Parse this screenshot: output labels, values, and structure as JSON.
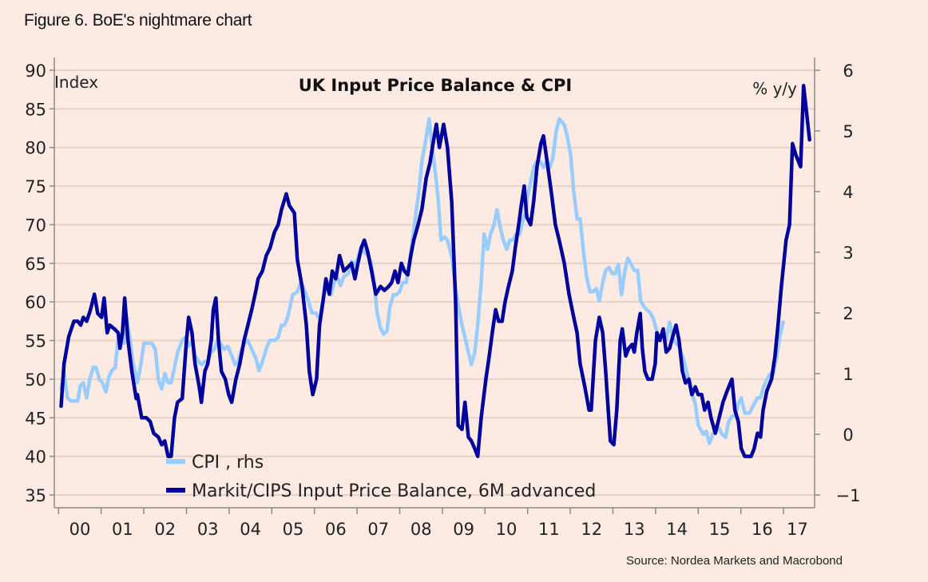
{
  "figure_title": "Figure 6. BoE's nightmare chart",
  "source": "Source: Nordea Markets and Macrobond",
  "colors": {
    "background": "#fdebe3",
    "grid": "#e6d3c8",
    "axis": "#8a8a8a",
    "markit": "#00009c",
    "cpi": "#99ccff"
  },
  "chart_data": {
    "type": "line",
    "title": "UK Input Price Balance & CPI",
    "ylabel": "Index",
    "y2label": "% y/y",
    "ylim": [
      35,
      90
    ],
    "y2lim": [
      -1,
      6
    ],
    "xlim": [
      2000,
      2017.65
    ],
    "yticks": [
      "35",
      "40",
      "45",
      "50",
      "55",
      "60",
      "65",
      "70",
      "75",
      "80",
      "85",
      "90"
    ],
    "y2ticks": [
      "−1",
      "0",
      "1",
      "2",
      "3",
      "4",
      "5",
      "6"
    ],
    "xtick_labels": [
      "00",
      "01",
      "02",
      "03",
      "04",
      "05",
      "06",
      "07",
      "08",
      "09",
      "10",
      "11",
      "12",
      "13",
      "14",
      "15",
      "16",
      "17"
    ],
    "grid": true,
    "legend_placement": "bottom-left",
    "series": [
      {
        "name": "CPI , rhs",
        "axis": "right",
        "x": [
          2000.06,
          2000.13,
          2000.21,
          2000.28,
          2000.37,
          2000.45,
          2000.51,
          2000.58,
          2000.66,
          2000.73,
          2000.81,
          2000.88,
          2000.96,
          2001.03,
          2001.11,
          2001.18,
          2001.25,
          2001.33,
          2001.4,
          2001.48,
          2001.54,
          2001.59,
          2001.67,
          2001.74,
          2001.85,
          2001.93,
          2002.0,
          2002.1,
          2002.19,
          2002.27,
          2002.34,
          2002.42,
          2002.49,
          2002.57,
          2002.64,
          2002.72,
          2002.79,
          2002.9,
          2002.98,
          2003.05,
          2003.13,
          2003.2,
          2003.28,
          2003.35,
          2003.43,
          2003.5,
          2003.58,
          2003.65,
          2003.73,
          2003.8,
          2003.88,
          2003.97,
          2004.06,
          2004.14,
          2004.21,
          2004.29,
          2004.36,
          2004.44,
          2004.53,
          2004.63,
          2004.7,
          2004.78,
          2004.89,
          2004.96,
          2005.08,
          2005.15,
          2005.23,
          2005.3,
          2005.38,
          2005.49,
          2005.6,
          2005.68,
          2005.75,
          2005.86,
          2005.94,
          2006.03,
          2006.12,
          2006.22,
          2006.31,
          2006.39,
          2006.46,
          2006.54,
          2006.61,
          2006.69,
          2006.8,
          2006.87,
          2006.95,
          2007.02,
          2007.1,
          2007.17,
          2007.25,
          2007.32,
          2007.4,
          2007.47,
          2007.55,
          2007.62,
          2007.7,
          2007.77,
          2007.85,
          2007.92,
          2008.0,
          2008.07,
          2008.15,
          2008.22,
          2008.3,
          2008.37,
          2008.45,
          2008.52,
          2008.6,
          2008.69,
          2008.75,
          2008.82,
          2008.9,
          2008.97,
          2009.05,
          2009.12,
          2009.23,
          2009.31,
          2009.38,
          2009.46,
          2009.53,
          2009.61,
          2009.68,
          2009.76,
          2009.83,
          2009.91,
          2009.98,
          2010.06,
          2010.13,
          2010.21,
          2010.28,
          2010.36,
          2010.43,
          2010.51,
          2010.58,
          2010.66,
          2010.73,
          2010.81,
          2010.88,
          2010.96,
          2010.99,
          2011.07,
          2011.14,
          2011.22,
          2011.29,
          2011.37,
          2011.44,
          2011.52,
          2011.59,
          2011.67,
          2011.74,
          2011.86,
          2011.93,
          2012.01,
          2012.08,
          2012.16,
          2012.23,
          2012.31,
          2012.38,
          2012.46,
          2012.53,
          2012.61,
          2012.68,
          2012.76,
          2012.83,
          2012.91,
          2012.98,
          2013.05,
          2013.13,
          2013.2,
          2013.28,
          2013.35,
          2013.43,
          2013.5,
          2013.58,
          2013.65,
          2013.73,
          2013.8,
          2013.88,
          2013.95,
          2014.03,
          2014.1,
          2014.18,
          2014.25,
          2014.33,
          2014.4,
          2014.48,
          2014.55,
          2014.67,
          2014.74,
          2014.82,
          2014.93,
          2015.0,
          2015.12,
          2015.19,
          2015.26,
          2015.34,
          2015.41,
          2015.49,
          2015.56,
          2015.64,
          2015.71,
          2015.79,
          2015.86,
          2015.94,
          2016.01,
          2016.09,
          2016.2,
          2016.31,
          2016.39,
          2016.46,
          2016.54,
          2016.61,
          2016.69,
          2016.76,
          2016.84,
          2016.91,
          2016.99
        ],
        "values": [
          0.75,
          1.0,
          0.6,
          0.55,
          0.55,
          0.55,
          0.8,
          0.85,
          0.6,
          0.9,
          1.1,
          1.1,
          0.9,
          0.85,
          0.7,
          0.95,
          1.05,
          1.1,
          1.6,
          1.6,
          1.5,
          1.95,
          1.6,
          1.2,
          0.85,
          1.15,
          1.5,
          1.5,
          1.5,
          1.4,
          0.9,
          0.75,
          1.0,
          0.85,
          0.85,
          1.1,
          1.35,
          1.55,
          1.6,
          1.45,
          1.55,
          1.3,
          1.2,
          1.15,
          1.2,
          1.2,
          1.35,
          1.4,
          1.55,
          1.5,
          1.4,
          1.45,
          1.3,
          1.15,
          1.2,
          1.4,
          1.5,
          1.55,
          1.4,
          1.25,
          1.05,
          1.2,
          1.45,
          1.55,
          1.55,
          1.6,
          1.8,
          1.8,
          1.95,
          2.3,
          2.35,
          2.5,
          2.4,
          2.2,
          2.0,
          2.0,
          1.9,
          2.3,
          2.5,
          2.3,
          2.5,
          2.6,
          2.45,
          2.6,
          2.65,
          2.85,
          2.8,
          2.9,
          3.1,
          3.0,
          2.95,
          2.85,
          2.5,
          2.0,
          1.75,
          1.65,
          1.7,
          2.1,
          2.3,
          2.3,
          2.35,
          2.5,
          2.5,
          2.8,
          3.2,
          3.6,
          4.0,
          4.5,
          4.8,
          5.2,
          4.8,
          4.4,
          3.9,
          3.2,
          3.25,
          3.2,
          2.9,
          2.4,
          2.1,
          1.8,
          1.6,
          1.35,
          1.15,
          1.35,
          1.8,
          2.5,
          3.3,
          3.05,
          3.3,
          3.45,
          3.7,
          3.4,
          3.2,
          3.05,
          3.2,
          3.2,
          3.3,
          3.3,
          3.5,
          3.7,
          3.9,
          4.15,
          4.4,
          4.5,
          4.5,
          4.4,
          4.5,
          4.4,
          4.55,
          5.0,
          5.2,
          5.1,
          4.9,
          4.6,
          4.0,
          3.55,
          3.55,
          3.0,
          2.6,
          2.35,
          2.35,
          2.4,
          2.2,
          2.5,
          2.7,
          2.75,
          2.65,
          2.65,
          2.8,
          2.3,
          2.7,
          2.9,
          2.8,
          2.7,
          2.7,
          2.2,
          2.1,
          2.05,
          2.0,
          1.9,
          1.7,
          1.55,
          1.7,
          1.55,
          1.85,
          1.6,
          1.5,
          1.45,
          1.2,
          1.0,
          0.75,
          0.5,
          0.15,
          0.0,
          0.05,
          -0.15,
          0.0,
          0.05,
          0.1,
          0.0,
          -0.05,
          0.2,
          0.3,
          0.3,
          0.5,
          0.6,
          0.35,
          0.35,
          0.5,
          0.6,
          0.6,
          0.8,
          0.9,
          1.0,
          1.0,
          1.3,
          1.6,
          1.85
        ]
      },
      {
        "name": "Markit/CIPS Input Price Balance, 6M advanced",
        "axis": "left",
        "x": [
          2000.06,
          2000.13,
          2000.24,
          2000.36,
          2000.45,
          2000.52,
          2000.58,
          2000.66,
          2000.75,
          2000.84,
          2000.92,
          2001.01,
          2001.07,
          2001.14,
          2001.2,
          2001.31,
          2001.4,
          2001.44,
          2001.5,
          2001.55,
          2001.63,
          2001.72,
          2001.82,
          2001.85,
          2001.95,
          2002.06,
          2002.15,
          2002.23,
          2002.34,
          2002.42,
          2002.49,
          2002.57,
          2002.64,
          2002.72,
          2002.79,
          2002.9,
          2003.0,
          2003.05,
          2003.13,
          2003.2,
          2003.3,
          2003.35,
          2003.43,
          2003.5,
          2003.58,
          2003.63,
          2003.69,
          2003.75,
          2003.82,
          2003.91,
          2003.99,
          2004.06,
          2004.16,
          2004.25,
          2004.35,
          2004.44,
          2004.53,
          2004.63,
          2004.68,
          2004.78,
          2004.87,
          2004.96,
          2005.06,
          2005.15,
          2005.23,
          2005.34,
          2005.41,
          2005.53,
          2005.6,
          2005.71,
          2005.81,
          2005.88,
          2005.96,
          2006.05,
          2006.12,
          2006.2,
          2006.27,
          2006.35,
          2006.42,
          2006.5,
          2006.59,
          2006.69,
          2006.78,
          2006.87,
          2006.95,
          2007.02,
          2007.1,
          2007.17,
          2007.25,
          2007.34,
          2007.44,
          2007.55,
          2007.64,
          2007.74,
          2007.81,
          2007.89,
          2007.96,
          2008.04,
          2008.11,
          2008.19,
          2008.26,
          2008.33,
          2008.43,
          2008.52,
          2008.62,
          2008.71,
          2008.78,
          2008.86,
          2008.93,
          2009.03,
          2009.12,
          2009.22,
          2009.31,
          2009.37,
          2009.46,
          2009.53,
          2009.61,
          2009.68,
          2009.76,
          2009.83,
          2009.91,
          2010.02,
          2010.1,
          2010.17,
          2010.25,
          2010.32,
          2010.4,
          2010.47,
          2010.55,
          2010.64,
          2010.71,
          2010.79,
          2010.85,
          2010.92,
          2010.98,
          2011.07,
          2011.14,
          2011.22,
          2011.31,
          2011.37,
          2011.46,
          2011.56,
          2011.65,
          2011.74,
          2011.86,
          2011.97,
          2012.08,
          2012.16,
          2012.23,
          2012.34,
          2012.44,
          2012.49,
          2012.59,
          2012.68,
          2012.76,
          2012.83,
          2012.89,
          2012.94,
          2013.02,
          2013.09,
          2013.17,
          2013.22,
          2013.3,
          2013.37,
          2013.45,
          2013.5,
          2013.56,
          2013.64,
          2013.69,
          2013.75,
          2013.82,
          2013.92,
          2013.99,
          2014.03,
          2014.1,
          2014.18,
          2014.25,
          2014.33,
          2014.4,
          2014.48,
          2014.55,
          2014.63,
          2014.7,
          2014.78,
          2014.85,
          2014.93,
          2015.0,
          2015.08,
          2015.15,
          2015.23,
          2015.3,
          2015.4,
          2015.49,
          2015.58,
          2015.68,
          2015.79,
          2015.86,
          2015.94,
          2016.01,
          2016.09,
          2016.16,
          2016.24,
          2016.31,
          2016.39,
          2016.46,
          2016.52,
          2016.61,
          2016.72,
          2016.8,
          2016.87,
          2016.95,
          2017.06,
          2017.14,
          2017.21,
          2017.29,
          2017.4,
          2017.47,
          2017.55,
          2017.61
        ],
        "values": [
          46.5,
          52,
          55.5,
          57.5,
          57.5,
          57,
          58,
          57.5,
          59,
          61,
          58.5,
          58,
          60.5,
          56,
          57,
          56.5,
          56,
          54,
          56,
          60.5,
          55,
          51,
          47.5,
          48,
          45,
          45,
          44.5,
          43,
          42.5,
          41.5,
          42,
          40,
          40,
          45,
          47,
          47.5,
          55,
          58,
          56,
          52,
          49,
          47,
          51,
          52,
          55,
          59,
          60.5,
          55,
          51,
          50,
          48,
          47,
          50,
          52,
          55,
          57,
          59,
          61.5,
          63,
          64,
          66,
          67,
          69,
          70,
          72,
          74,
          72.5,
          71.5,
          65.5,
          62,
          57,
          51,
          48,
          50,
          57,
          60,
          63,
          61,
          64,
          63,
          66,
          64,
          64.5,
          65,
          63,
          65,
          67,
          68,
          66.5,
          64,
          61,
          62,
          61.5,
          62,
          62.5,
          64,
          62.5,
          65,
          64,
          63.5,
          66,
          68,
          70,
          72,
          76,
          78,
          80.5,
          83,
          80,
          83,
          80,
          73,
          60,
          44,
          43.5,
          47,
          42.5,
          42,
          41,
          40,
          45,
          50,
          53,
          56,
          59,
          57.5,
          57.5,
          60,
          62,
          64,
          67,
          70,
          72.5,
          75,
          71,
          70,
          73,
          77.5,
          80.5,
          81.5,
          78,
          74,
          70,
          68,
          65,
          61,
          58,
          56,
          52,
          49,
          46,
          46,
          55,
          58,
          56,
          51,
          46,
          42,
          41.5,
          46,
          55,
          56.5,
          53,
          54,
          54.5,
          53.5,
          56,
          58.5,
          54,
          51,
          50,
          50,
          52,
          56,
          55,
          56.5,
          53.5,
          54,
          55.5,
          57,
          55,
          51,
          49.5,
          50,
          48,
          49,
          48,
          48,
          46,
          47,
          45,
          43,
          45,
          47,
          48.5,
          50,
          46,
          44.5,
          41,
          40,
          40,
          40,
          41,
          43,
          42.5,
          46,
          48.5,
          50,
          53,
          57,
          62,
          68,
          70,
          80.5,
          79,
          77.5,
          88,
          84,
          81
        ]
      }
    ]
  }
}
